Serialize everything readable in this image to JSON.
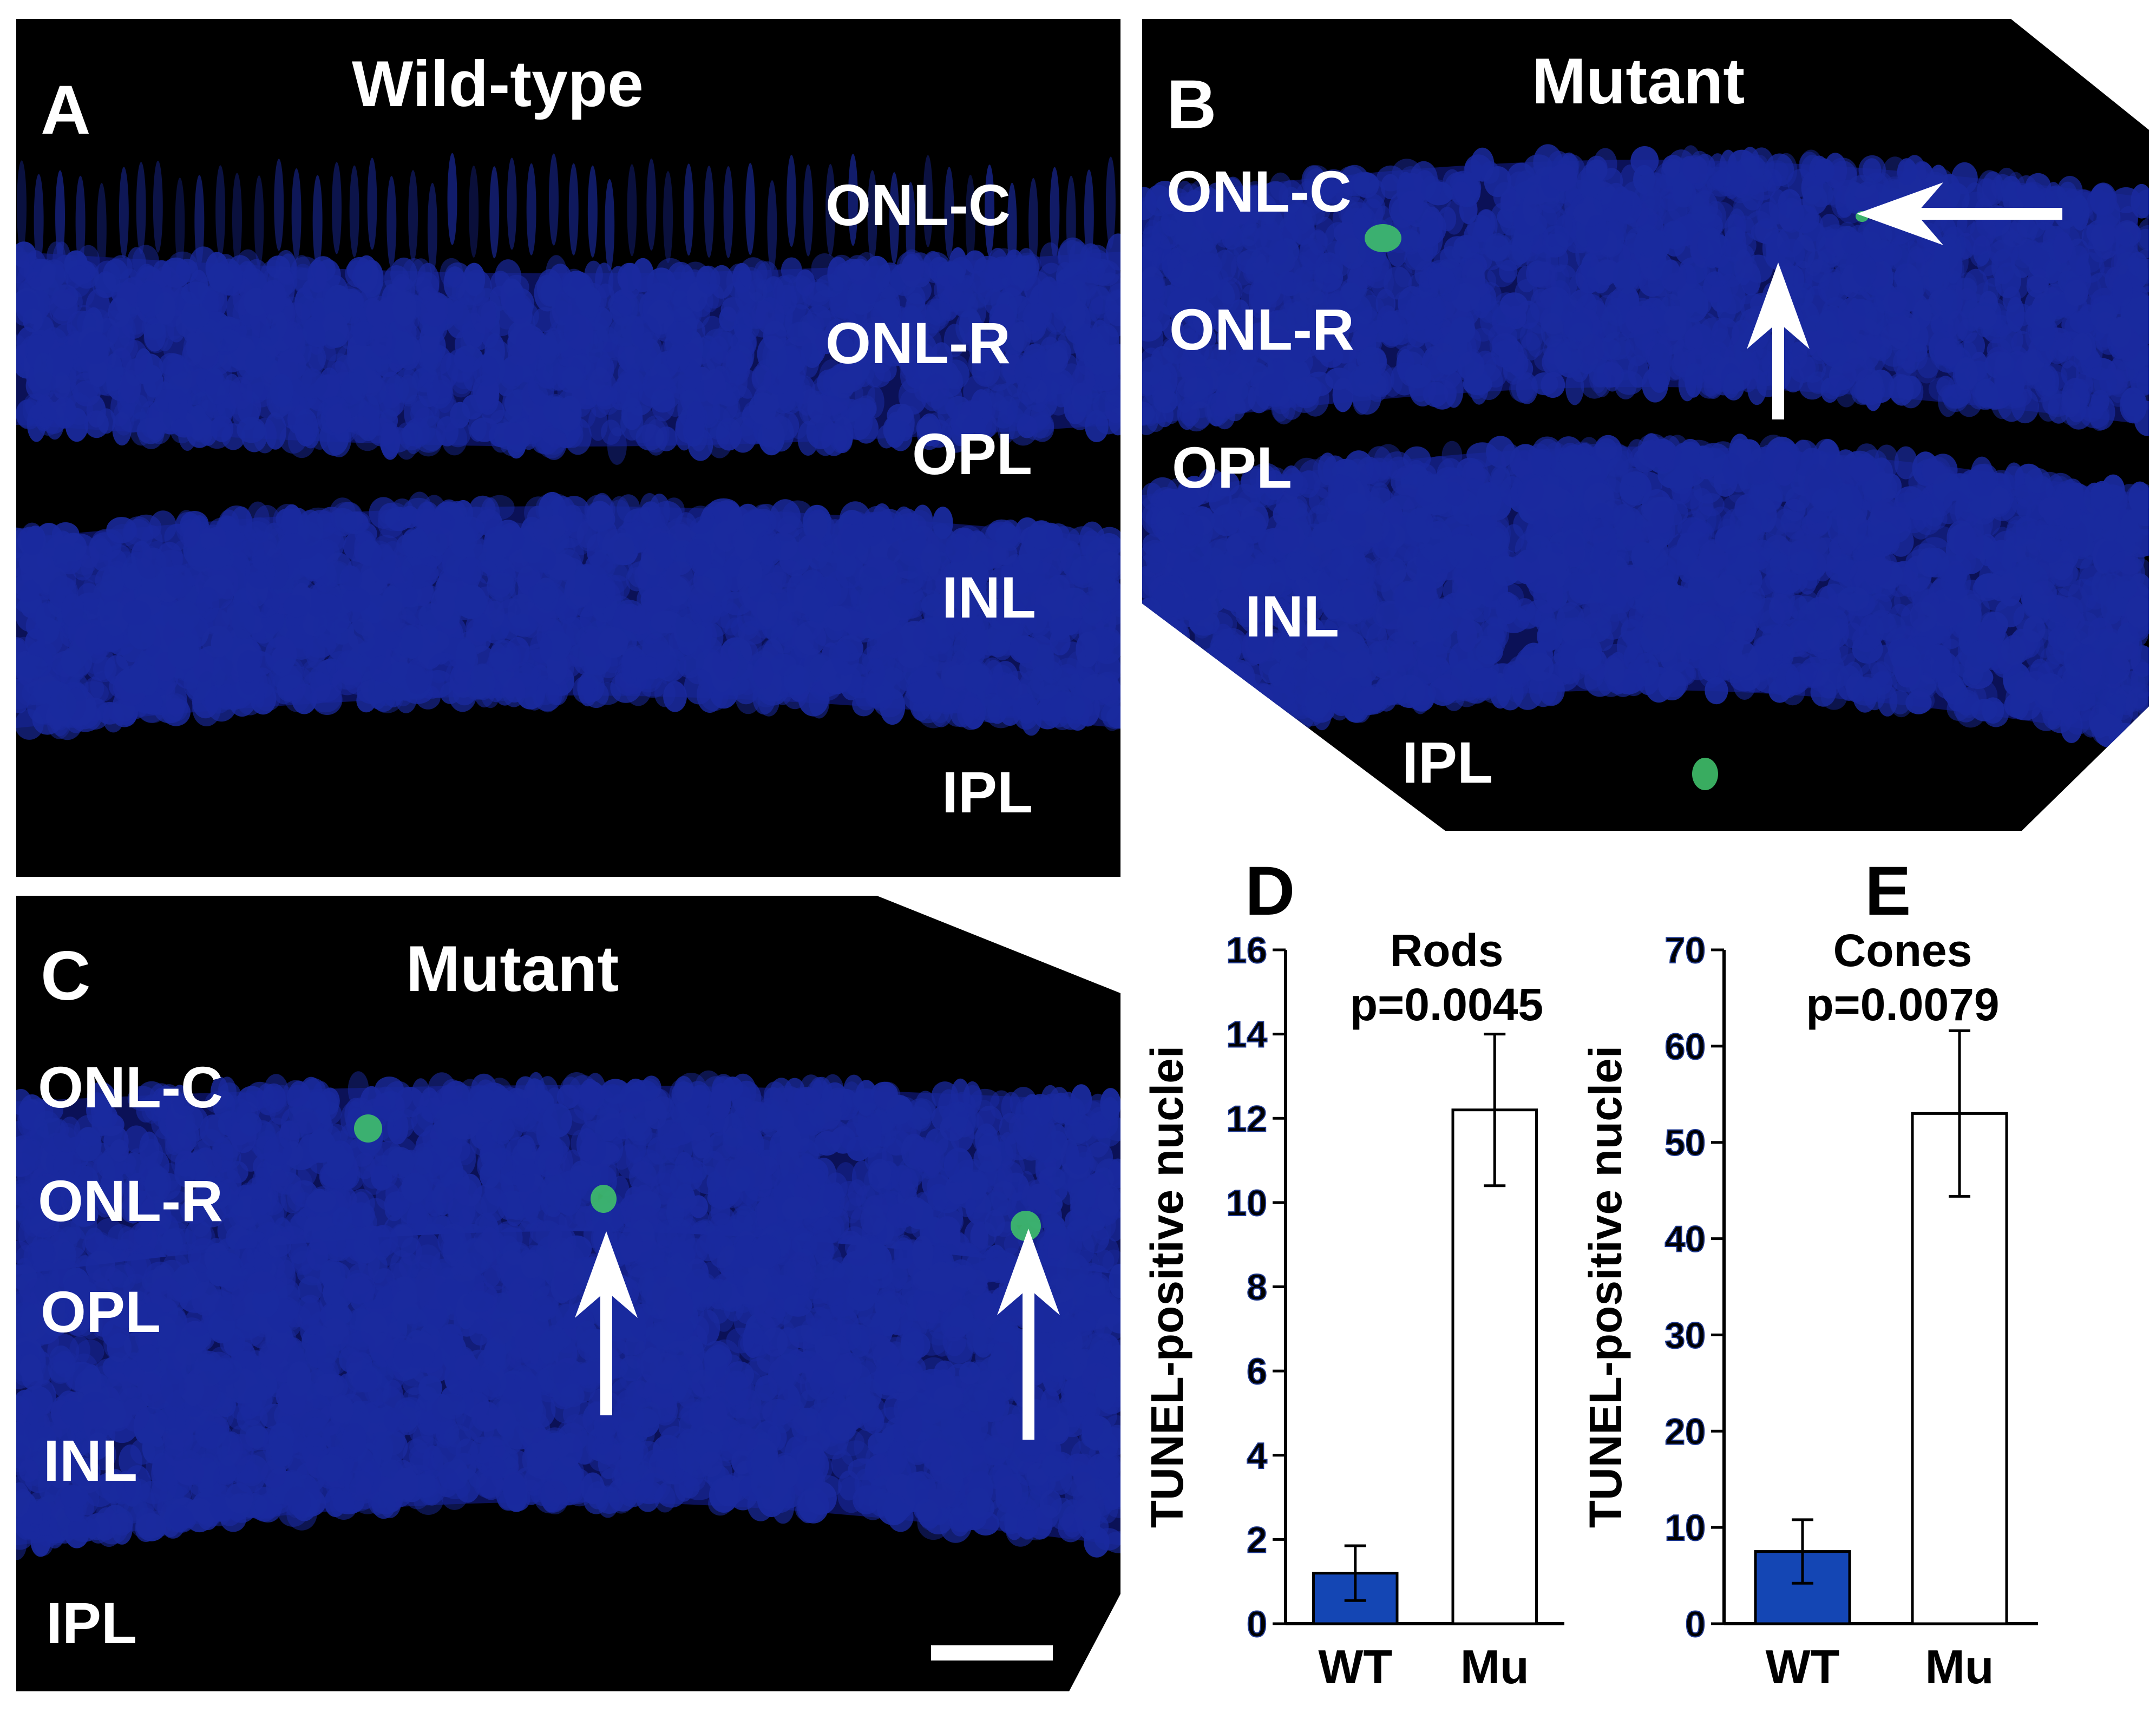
{
  "panels": {
    "A": {
      "letter": "A",
      "title": "Wild-type",
      "layers": [
        "ONL-C",
        "ONL-R",
        "OPL",
        "INL",
        "IPL"
      ]
    },
    "B": {
      "letter": "B",
      "title": "Mutant",
      "layers": [
        "ONL-C",
        "ONL-R",
        "OPL",
        "INL",
        "IPL"
      ]
    },
    "C": {
      "letter": "C",
      "title": "Mutant",
      "layers": [
        "ONL-C",
        "ONL-R",
        "OPL",
        "INL",
        "IPL"
      ]
    }
  },
  "colors": {
    "nuclei": "#1a2a9e",
    "tunel": "#3fbf6a",
    "wt_bar": "#1446b4",
    "mu_bar": "#ffffff",
    "tick_labels": "#000000"
  },
  "chart_data": [
    {
      "panel": "D",
      "type": "bar",
      "title": "Rods",
      "subtitle": "p=0.0045",
      "ylabel": "TUNEL-positive nuclei",
      "xlabel": "",
      "categories": [
        "WT",
        "Mu"
      ],
      "values": [
        1.2,
        12.2
      ],
      "errors": [
        0.65,
        1.8
      ],
      "ylim": [
        0,
        16
      ],
      "yticks": [
        0,
        2,
        4,
        6,
        8,
        10,
        12,
        14,
        16
      ],
      "grid": false,
      "legend": "none"
    },
    {
      "panel": "E",
      "type": "bar",
      "title": "Cones",
      "subtitle": "p=0.0079",
      "ylabel": "TUNEL-positive nuclei",
      "xlabel": "",
      "categories": [
        "WT",
        "Mu"
      ],
      "values": [
        7.5,
        53
      ],
      "errors": [
        3.3,
        8.6
      ],
      "ylim": [
        0,
        70
      ],
      "yticks": [
        0,
        10,
        20,
        30,
        40,
        50,
        60,
        70
      ],
      "grid": false,
      "legend": "none"
    }
  ]
}
